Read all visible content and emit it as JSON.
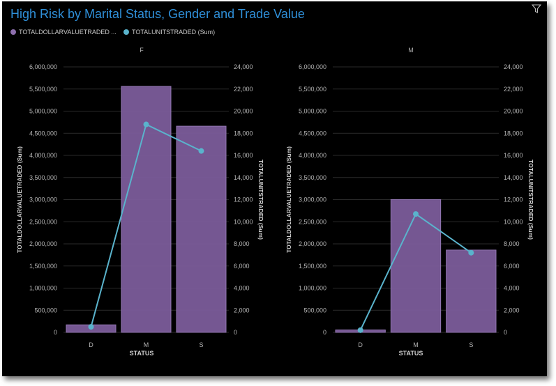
{
  "title": "High Risk by Marital Status, Gender and Trade Value",
  "legend": {
    "bar_label": "TOTALDOLLARVALUETRADED ...",
    "line_label": "TOTALUNITSTRADED (Sum)"
  },
  "colors": {
    "bar": "#7b5c9a",
    "line": "#5ab3cc",
    "title": "#2f8fd8",
    "background": "#000000"
  },
  "icons": {
    "filter": "filter-icon"
  },
  "chart_data": [
    {
      "type": "bar",
      "panel": "F",
      "categories": [
        "D",
        "M",
        "S"
      ],
      "series": [
        {
          "name": "TOTALDOLLARVALUETRADED (Sum)",
          "type": "bar",
          "axis": "left",
          "values": [
            170000,
            5560000,
            4660000
          ]
        },
        {
          "name": "TOTALUNITSTRADED (Sum)",
          "type": "line",
          "axis": "right",
          "values": [
            500,
            18800,
            16400
          ]
        }
      ],
      "xlabel": "STATUS",
      "ylabel": "TOTALDOLLARVALUETRADED (Sum)",
      "y2label": "TOTALUNITSTRADED (Sum)",
      "ylim": [
        0,
        6000000
      ],
      "y2lim": [
        0,
        24000
      ],
      "yticks": [
        "0",
        "500,000",
        "1,000,000",
        "1,500,000",
        "2,000,000",
        "2,500,000",
        "3,000,000",
        "3,500,000",
        "4,000,000",
        "4,500,000",
        "5,000,000",
        "5,500,000",
        "6,000,000"
      ],
      "y2ticks": [
        "0",
        "2,000",
        "4,000",
        "6,000",
        "8,000",
        "10,000",
        "12,000",
        "14,000",
        "16,000",
        "18,000",
        "20,000",
        "22,000",
        "24,000"
      ],
      "grid": true
    },
    {
      "type": "bar",
      "panel": "M",
      "categories": [
        "D",
        "M",
        "S"
      ],
      "series": [
        {
          "name": "TOTALDOLLARVALUETRADED (Sum)",
          "type": "bar",
          "axis": "left",
          "values": [
            55000,
            3000000,
            1860000
          ]
        },
        {
          "name": "TOTALUNITSTRADED (Sum)",
          "type": "line",
          "axis": "right",
          "values": [
            200,
            10700,
            7200
          ]
        }
      ],
      "xlabel": "STATUS",
      "ylabel": "TOTALDOLLARVALUETRADED (Sum)",
      "y2label": "TOTALUNITSTRADED (Sum)",
      "ylim": [
        0,
        6000000
      ],
      "y2lim": [
        0,
        24000
      ],
      "yticks": [
        "0",
        "500,000",
        "1,000,000",
        "1,500,000",
        "2,000,000",
        "2,500,000",
        "3,000,000",
        "3,500,000",
        "4,000,000",
        "4,500,000",
        "5,000,000",
        "5,500,000",
        "6,000,000"
      ],
      "y2ticks": [
        "0",
        "2,000",
        "4,000",
        "6,000",
        "8,000",
        "10,000",
        "12,000",
        "14,000",
        "16,000",
        "18,000",
        "20,000",
        "22,000",
        "24,000"
      ],
      "grid": true
    }
  ]
}
